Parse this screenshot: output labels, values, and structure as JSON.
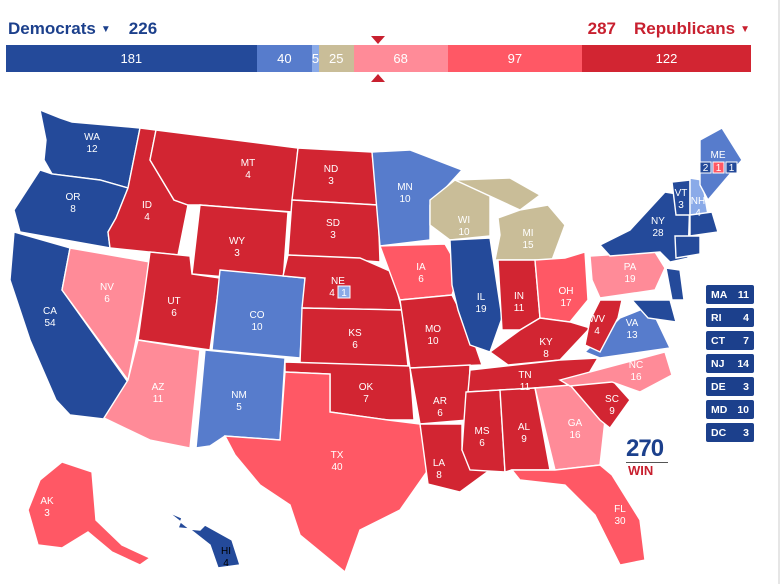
{
  "header": {
    "dem_label": "Democrats",
    "dem_total": "226",
    "rep_label": "Republicans",
    "rep_total": "287",
    "dem_color": "#1c408c",
    "rep_color": "#c8202f"
  },
  "bar": [
    {
      "label": "181",
      "value": 181,
      "color": "#244a9a"
    },
    {
      "label": "40",
      "value": 40,
      "color": "#577ccc"
    },
    {
      "label": "5",
      "value": 5,
      "color": "#8aaae8"
    },
    {
      "label": "25",
      "value": 25,
      "color": "#c9bd98"
    },
    {
      "label": "68",
      "value": 68,
      "color": "#ff8b98"
    },
    {
      "label": "97",
      "value": 97,
      "color": "#ff5865"
    },
    {
      "label": "122",
      "value": 122,
      "color": "#d22532"
    }
  ],
  "legend_colors": {
    "safe_dem": "#244a9a",
    "likely_dem": "#577ccc",
    "lean_dem": "#8aaae8",
    "tossup": "#c9bd98",
    "lean_rep": "#ff8b98",
    "likely_rep": "#ff5865",
    "safe_rep": "#d22532"
  },
  "states": {
    "WA": {
      "abbr": "WA",
      "ev": "12"
    },
    "OR": {
      "abbr": "OR",
      "ev": "8"
    },
    "CA": {
      "abbr": "CA",
      "ev": "54"
    },
    "ID": {
      "abbr": "ID",
      "ev": "4"
    },
    "NV": {
      "abbr": "NV",
      "ev": "6"
    },
    "MT": {
      "abbr": "MT",
      "ev": "4"
    },
    "WY": {
      "abbr": "WY",
      "ev": "3"
    },
    "UT": {
      "abbr": "UT",
      "ev": "6"
    },
    "AZ": {
      "abbr": "AZ",
      "ev": "11"
    },
    "CO": {
      "abbr": "CO",
      "ev": "10"
    },
    "NM": {
      "abbr": "NM",
      "ev": "5"
    },
    "ND": {
      "abbr": "ND",
      "ev": "3"
    },
    "SD": {
      "abbr": "SD",
      "ev": "3"
    },
    "NE": {
      "abbr": "NE",
      "ev": "4",
      "extra": "1"
    },
    "KS": {
      "abbr": "KS",
      "ev": "6"
    },
    "OK": {
      "abbr": "OK",
      "ev": "7"
    },
    "TX": {
      "abbr": "TX",
      "ev": "40"
    },
    "MN": {
      "abbr": "MN",
      "ev": "10"
    },
    "IA": {
      "abbr": "IA",
      "ev": "6"
    },
    "MO": {
      "abbr": "MO",
      "ev": "10"
    },
    "AR": {
      "abbr": "AR",
      "ev": "6"
    },
    "LA": {
      "abbr": "LA",
      "ev": "8"
    },
    "WI": {
      "abbr": "WI",
      "ev": "10"
    },
    "IL": {
      "abbr": "IL",
      "ev": "19"
    },
    "MI": {
      "abbr": "MI",
      "ev": "15"
    },
    "IN": {
      "abbr": "IN",
      "ev": "11"
    },
    "OH": {
      "abbr": "OH",
      "ev": "17"
    },
    "KY": {
      "abbr": "KY",
      "ev": "8"
    },
    "TN": {
      "abbr": "TN",
      "ev": "11"
    },
    "MS": {
      "abbr": "MS",
      "ev": "6"
    },
    "AL": {
      "abbr": "AL",
      "ev": "9"
    },
    "GA": {
      "abbr": "GA",
      "ev": "16"
    },
    "FL": {
      "abbr": "FL",
      "ev": "30"
    },
    "SC": {
      "abbr": "SC",
      "ev": "9"
    },
    "NC": {
      "abbr": "NC",
      "ev": "16"
    },
    "VA": {
      "abbr": "VA",
      "ev": "13"
    },
    "WV": {
      "abbr": "WV",
      "ev": "4"
    },
    "PA": {
      "abbr": "PA",
      "ev": "19"
    },
    "NY": {
      "abbr": "NY",
      "ev": "28"
    },
    "VT": {
      "abbr": "VT",
      "ev": "3"
    },
    "NH": {
      "abbr": "NH",
      "ev": "4"
    },
    "ME": {
      "abbr": "ME",
      "ev": "",
      "d1": "2",
      "d2": "1",
      "d3": "1"
    },
    "AK": {
      "abbr": "AK",
      "ev": "3"
    },
    "HI": {
      "abbr": "HI",
      "ev": "4"
    }
  },
  "small_states": [
    {
      "abbr": "MA",
      "ev": "11"
    },
    {
      "abbr": "RI",
      "ev": "4"
    },
    {
      "abbr": "CT",
      "ev": "7"
    },
    {
      "abbr": "NJ",
      "ev": "14"
    },
    {
      "abbr": "DE",
      "ev": "3"
    },
    {
      "abbr": "MD",
      "ev": "10"
    },
    {
      "abbr": "DC",
      "ev": "3"
    }
  ],
  "logo": {
    "number": "270",
    "sub": "WIN"
  }
}
